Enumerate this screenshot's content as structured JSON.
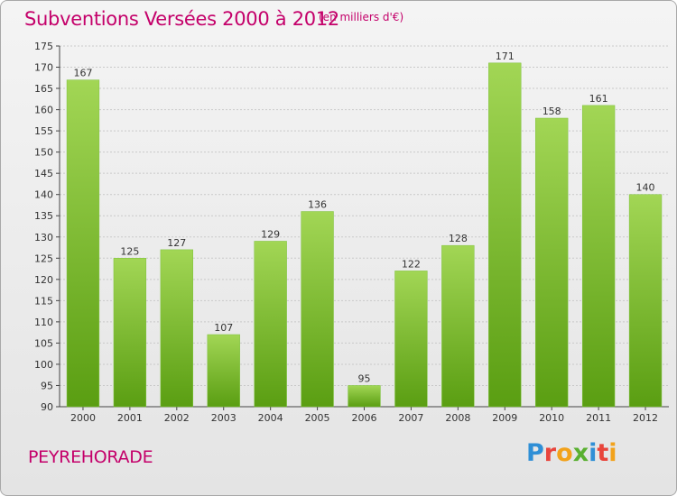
{
  "header": {
    "title": "Subventions Versées 2000 à 2012",
    "subtitle": "(en milliers d'€)"
  },
  "footer": {
    "commune": "PEYREHORADE",
    "logo_text": "Proxiti"
  },
  "colors": {
    "title": "#c4006a",
    "bar_top": "#a2d655",
    "bar_bottom": "#5a9e12",
    "logo_letters": [
      "#2f8fd6",
      "#e8453c",
      "#f2a21b",
      "#5ab031",
      "#2f8fd6",
      "#e8453c",
      "#f2a21b"
    ]
  },
  "chart_data": {
    "type": "bar",
    "categories": [
      "2000",
      "2001",
      "2002",
      "2003",
      "2004",
      "2005",
      "2006",
      "2007",
      "2008",
      "2009",
      "2010",
      "2011",
      "2012"
    ],
    "values": [
      167,
      125,
      127,
      107,
      129,
      136,
      95,
      122,
      128,
      171,
      158,
      161,
      140
    ],
    "title": "Subventions Versées 2000 à 2012",
    "subtitle": "(en milliers d'€)",
    "ylim": [
      90,
      175
    ],
    "yticks": [
      90,
      95,
      100,
      105,
      110,
      115,
      120,
      125,
      130,
      135,
      140,
      145,
      150,
      155,
      160,
      165,
      170,
      175
    ],
    "grid": true,
    "data_labels": true
  }
}
